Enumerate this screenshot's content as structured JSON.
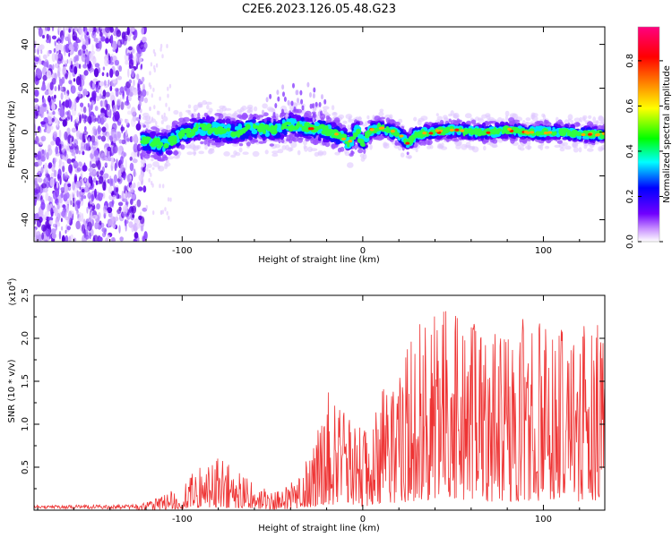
{
  "figure_title": "C2E6.2023.126.05.48.G23",
  "chart_data": [
    {
      "type": "heatmap",
      "xlabel": "Height of straight line (km)",
      "ylabel": "Frequency (Hz)",
      "xlim": [
        -182,
        134
      ],
      "ylim": [
        -50,
        48
      ],
      "x_ticks": [
        -100,
        0,
        100
      ],
      "x_tick_labels": [
        "-100",
        "0",
        "100"
      ],
      "y_ticks": [
        -40,
        -20,
        0,
        20,
        40
      ],
      "y_tick_labels": [
        "-40",
        "-20",
        "0",
        "20",
        "40"
      ],
      "colorbar": {
        "label": "Normalized spectral amplitude",
        "range": [
          0,
          0.95
        ],
        "ticks": [
          0,
          0.2,
          0.4,
          0.6,
          0.8
        ],
        "tick_labels": [
          "0.0",
          "0.2",
          "0.4",
          "0.6",
          "0.8"
        ],
        "colors": [
          "#ffffff",
          "#c890ff",
          "#7000ff",
          "#0000ff",
          "#00ffff",
          "#00ff00",
          "#ffff00",
          "#ff8000",
          "#ff0000",
          "#ff0080"
        ]
      },
      "ridge": {
        "x": [
          -120,
          -110,
          -100,
          -90,
          -80,
          -70,
          -60,
          -50,
          -40,
          -30,
          -20,
          -15,
          -10,
          -8,
          -5,
          -3,
          0,
          3,
          5,
          10,
          20,
          25,
          30,
          40,
          50,
          60,
          70,
          80,
          90,
          100,
          110,
          120,
          134
        ],
        "y": [
          -4,
          -6,
          -1,
          2,
          1,
          0,
          2,
          1,
          3,
          2,
          1,
          -1,
          -3,
          -5,
          -2,
          1,
          -6,
          -1,
          1,
          2,
          -1,
          -5,
          -1,
          0,
          1,
          0,
          0,
          1,
          0,
          0,
          0,
          -1,
          -1
        ]
      }
    },
    {
      "type": "line",
      "xlabel": "Height of straight line (km)",
      "ylabel": "SNR (10 * v/v)",
      "y_scale_note": "(x10",
      "y_scale_exp": "4",
      "y_scale_close": ")",
      "xlim": [
        -182,
        134
      ],
      "ylim": [
        0,
        2.5
      ],
      "x_ticks": [
        -100,
        0,
        100
      ],
      "x_tick_labels": [
        "-100",
        "0",
        "100"
      ],
      "y_ticks": [
        0.5,
        1.0,
        1.5,
        2.0,
        2.5
      ],
      "y_tick_labels": [
        "0.5",
        "1.0",
        "1.5",
        "2.0",
        "2.5"
      ],
      "series_color": "#ee3333",
      "envelope": {
        "x": [
          -182,
          -125,
          -112,
          -100,
          -90,
          -80,
          -70,
          -60,
          -50,
          -45,
          -40,
          -35,
          -30,
          -25,
          -20,
          -15,
          -10,
          -5,
          0,
          5,
          10,
          20,
          30,
          40,
          50,
          60,
          70,
          80,
          90,
          100,
          110,
          120,
          128,
          134
        ],
        "y": [
          0.04,
          0.05,
          0.15,
          0.3,
          0.5,
          0.6,
          0.5,
          0.3,
          0.2,
          0.22,
          0.3,
          0.4,
          0.6,
          0.9,
          1.4,
          1.2,
          1.1,
          1.0,
          0.9,
          1.1,
          1.3,
          1.6,
          2.1,
          2.2,
          2.3,
          2.1,
          2.0,
          1.9,
          2.2,
          2.1,
          2.0,
          2.0,
          2.3,
          1.8
        ]
      }
    }
  ]
}
